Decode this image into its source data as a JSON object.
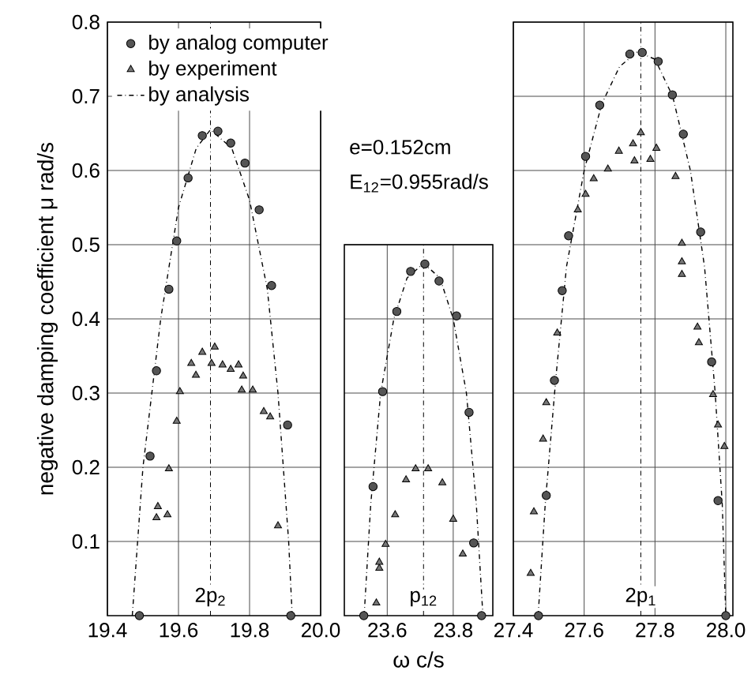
{
  "chart_data": [
    {
      "type": "scatter",
      "ylabel": "negative damping coefficient μ rad/s",
      "xlim": [
        19.4,
        20.0
      ],
      "ylim": [
        0,
        0.8
      ],
      "xticks": [
        19.4,
        19.6,
        19.8,
        {
          "value": 20.0,
          "label": "20.0"
        }
      ],
      "yticks": [
        0.1,
        0.2,
        0.3,
        0.4,
        0.5,
        0.6,
        0.7,
        0.8
      ],
      "grid": true,
      "legend": "top left",
      "annotations": [
        {
          "text": "2p$_{2}$",
          "x": 19.69,
          "y": 0.01
        }
      ],
      "ref_lines": [
        {
          "axis": "x",
          "value": 19.69,
          "line_style": "dashed",
          "color": "#000000"
        }
      ],
      "series": [
        {
          "name": "by analog computer",
          "marker": "circle",
          "color": "#555555",
          "x": [
            19.49,
            19.52,
            19.538,
            19.573,
            19.595,
            19.627,
            19.667,
            19.711,
            19.747,
            19.787,
            19.827,
            19.862,
            19.907,
            19.916
          ],
          "values": [
            0.0,
            0.215,
            0.33,
            0.44,
            0.505,
            0.59,
            0.647,
            0.653,
            0.637,
            0.61,
            0.547,
            0.445,
            0.257,
            0.0
          ]
        },
        {
          "name": "by experiment",
          "marker": "triangle",
          "color": "#777777",
          "x": [
            19.542,
            19.538,
            19.569,
            19.573,
            19.595,
            19.604,
            19.636,
            19.649,
            19.667,
            19.702,
            19.693,
            19.724,
            19.747,
            19.769,
            19.782,
            19.778,
            19.809,
            19.84,
            19.858,
            19.88
          ],
          "values": [
            0.147,
            0.132,
            0.136,
            0.198,
            0.262,
            0.302,
            0.34,
            0.324,
            0.355,
            0.362,
            0.34,
            0.338,
            0.332,
            0.338,
            0.323,
            0.304,
            0.304,
            0.275,
            0.268,
            0.121
          ]
        },
        {
          "name": "by analysis",
          "type": "line",
          "line_style": "dashed",
          "color": "#000000",
          "x": [
            19.47,
            19.5,
            19.55,
            19.6,
            19.65,
            19.69,
            19.75,
            19.8,
            19.85,
            19.88,
            19.91,
            19.92
          ],
          "values": [
            0,
            0.2,
            0.4,
            0.55,
            0.63,
            0.655,
            0.63,
            0.56,
            0.44,
            0.3,
            0.1,
            0
          ]
        }
      ]
    },
    {
      "type": "scatter",
      "xlabel": "ω  c/s",
      "xlim": [
        23.47,
        23.92
      ],
      "ylim": [
        0,
        0.5
      ],
      "xticks": [
        23.6,
        23.8
      ],
      "yticks": [
        0.1,
        0.2,
        0.3,
        0.4,
        0.5
      ],
      "grid": true,
      "tick_labels": "x",
      "annotations": [
        "e=0.152cm",
        "E$_{12}$=0.955rad/s",
        {
          "text": "p$_{12}$",
          "x": 23.71,
          "y": 0.01
        }
      ],
      "ref_lines": [
        {
          "axis": "x",
          "value": 23.71,
          "line_style": "dashed",
          "color": "#000000"
        }
      ],
      "series": [
        {
          "marker": "circle",
          "color": "#555555",
          "x": [
            23.529,
            23.557,
            23.586,
            23.629,
            23.671,
            23.714,
            23.757,
            23.81,
            23.848,
            23.862,
            23.886
          ],
          "values": [
            0.0,
            0.174,
            0.302,
            0.41,
            0.464,
            0.474,
            0.451,
            0.404,
            0.274,
            0.098,
            0.0
          ]
        },
        {
          "marker": "triangle",
          "color": "#777777",
          "x": [
            23.567,
            23.576,
            23.576,
            23.595,
            23.624,
            23.657,
            23.686,
            23.724,
            23.767,
            23.8,
            23.829
          ],
          "values": [
            0.017,
            0.064,
            0.072,
            0.096,
            0.136,
            0.183,
            0.198,
            0.198,
            0.179,
            0.13,
            0.083
          ]
        },
        {
          "type": "line",
          "line_style": "dashed",
          "color": "#000000",
          "x": [
            23.53,
            23.55,
            23.58,
            23.62,
            23.66,
            23.71,
            23.76,
            23.8,
            23.84,
            23.87,
            23.89
          ],
          "values": [
            0,
            0.15,
            0.3,
            0.4,
            0.455,
            0.475,
            0.455,
            0.4,
            0.3,
            0.15,
            0
          ]
        }
      ]
    },
    {
      "type": "scatter",
      "xlim": [
        27.4,
        28.02
      ],
      "ylim": [
        0,
        0.8
      ],
      "xticks": [
        27.4,
        27.6,
        27.8,
        {
          "value": 28.0,
          "label": "28.0"
        }
      ],
      "yticks": [
        0.1,
        0.2,
        0.3,
        0.4,
        0.5,
        0.6,
        0.7,
        0.8
      ],
      "grid": true,
      "tick_labels": "x",
      "annotations": [
        {
          "text": "2p$_{1}$",
          "x": 27.76,
          "y": 0.01
        }
      ],
      "ref_lines": [
        {
          "axis": "x",
          "value": 27.76,
          "line_style": "dashed",
          "color": "#000000"
        }
      ],
      "series": [
        {
          "marker": "circle",
          "color": "#555555",
          "x": [
            27.471,
            27.493,
            27.516,
            27.538,
            27.556,
            27.604,
            27.644,
            27.729,
            27.764,
            27.809,
            27.849,
            27.88,
            27.929,
            27.96,
            27.978,
            28.0
          ],
          "values": [
            0.0,
            0.162,
            0.317,
            0.438,
            0.512,
            0.619,
            0.688,
            0.757,
            0.759,
            0.747,
            0.702,
            0.649,
            0.517,
            0.342,
            0.155,
            0.0
          ]
        },
        {
          "marker": "triangle",
          "color": "#777777",
          "x": [
            27.449,
            27.458,
            27.484,
            27.493,
            27.524,
            27.582,
            27.604,
            27.627,
            27.667,
            27.698,
            27.738,
            27.742,
            27.76,
            27.787,
            27.804,
            27.858,
            27.876,
            27.876,
            27.876,
            27.92,
            27.924,
            27.964,
            27.978,
            27.996
          ],
          "values": [
            0.057,
            0.14,
            0.238,
            0.287,
            0.381,
            0.547,
            0.568,
            0.589,
            0.602,
            0.626,
            0.636,
            0.613,
            0.651,
            0.615,
            0.63,
            0.592,
            0.502,
            0.477,
            0.46,
            0.389,
            0.368,
            0.298,
            0.257,
            0.228
          ]
        },
        {
          "type": "line",
          "line_style": "dashed",
          "color": "#000000",
          "x": [
            27.47,
            27.49,
            27.52,
            27.55,
            27.6,
            27.65,
            27.7,
            27.75,
            27.8,
            27.85,
            27.9,
            27.94,
            27.97,
            27.99,
            28.0
          ],
          "values": [
            0,
            0.15,
            0.32,
            0.47,
            0.6,
            0.69,
            0.74,
            0.76,
            0.75,
            0.7,
            0.6,
            0.47,
            0.3,
            0.15,
            0
          ]
        }
      ]
    }
  ]
}
